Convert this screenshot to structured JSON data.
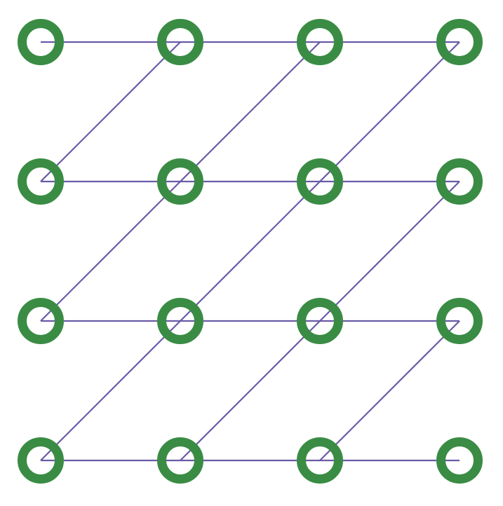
{
  "diagram": {
    "type": "grid-graph",
    "rows": 4,
    "cols": 4,
    "node_color": "#3a8c44",
    "edge_color": "#6a5aa8",
    "background": "#ffffff",
    "node_shape": "ring",
    "edges": [
      [
        [
          0,
          0
        ],
        [
          0,
          1
        ]
      ],
      [
        [
          0,
          1
        ],
        [
          0,
          2
        ]
      ],
      [
        [
          0,
          2
        ],
        [
          0,
          3
        ]
      ],
      [
        [
          1,
          0
        ],
        [
          1,
          1
        ]
      ],
      [
        [
          1,
          1
        ],
        [
          1,
          2
        ]
      ],
      [
        [
          1,
          2
        ],
        [
          1,
          3
        ]
      ],
      [
        [
          2,
          0
        ],
        [
          2,
          1
        ]
      ],
      [
        [
          2,
          1
        ],
        [
          2,
          2
        ]
      ],
      [
        [
          2,
          2
        ],
        [
          2,
          3
        ]
      ],
      [
        [
          3,
          0
        ],
        [
          3,
          1
        ]
      ],
      [
        [
          3,
          1
        ],
        [
          3,
          2
        ]
      ],
      [
        [
          3,
          2
        ],
        [
          3,
          3
        ]
      ],
      [
        [
          1,
          0
        ],
        [
          0,
          1
        ]
      ],
      [
        [
          1,
          1
        ],
        [
          0,
          2
        ]
      ],
      [
        [
          1,
          2
        ],
        [
          0,
          3
        ]
      ],
      [
        [
          2,
          0
        ],
        [
          1,
          1
        ]
      ],
      [
        [
          2,
          1
        ],
        [
          1,
          2
        ]
      ],
      [
        [
          2,
          2
        ],
        [
          1,
          3
        ]
      ],
      [
        [
          3,
          0
        ],
        [
          2,
          1
        ]
      ],
      [
        [
          3,
          1
        ],
        [
          2,
          2
        ]
      ],
      [
        [
          3,
          2
        ],
        [
          2,
          3
        ]
      ]
    ]
  }
}
